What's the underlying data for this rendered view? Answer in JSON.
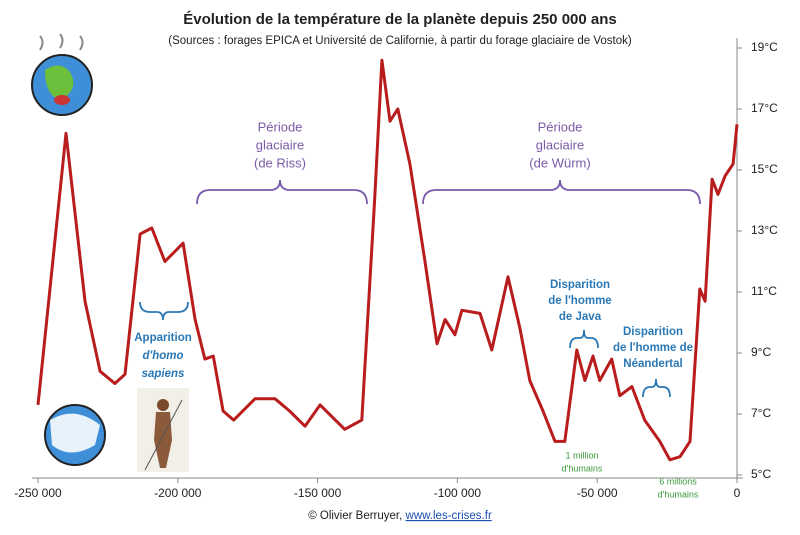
{
  "chart_data": {
    "type": "line",
    "title": "Évolution de la température de la planète depuis 250 000 ans",
    "subtitle": "(Sources : forages EPICA et Université de Californie, à partir du forage glaciaire de Vostok)",
    "x": [
      -250000,
      -240000,
      -233200,
      -227800,
      -222500,
      -218900,
      -213500,
      -209300,
      -204600,
      -198100,
      -193800,
      -190300,
      -187300,
      -183800,
      -180000,
      -172400,
      -165200,
      -160000,
      -154500,
      -149100,
      -140300,
      -134200,
      -129600,
      -127000,
      -124100,
      -121300,
      -117000,
      -111600,
      -107300,
      -104400,
      -100900,
      -98400,
      -91900,
      -87700,
      -81900,
      -77600,
      -74100,
      -69400,
      -65100,
      -61600,
      -57300,
      -54400,
      -51500,
      -49100,
      -44800,
      -41900,
      -37600,
      -33000,
      -27600,
      -24000,
      -20400,
      -16800,
      -13300,
      -11400,
      -8900,
      -6800,
      -4300,
      -1400,
      0
    ],
    "series": [
      {
        "color": "#b81c1c",
        "values": [
          7.3,
          16.2,
          10.7,
          8.4,
          8.0,
          8.3,
          12.9,
          13.1,
          12.0,
          12.6,
          10.1,
          8.8,
          8.9,
          7.1,
          6.8,
          7.5,
          7.5,
          7.1,
          6.6,
          7.3,
          6.5,
          6.8,
          14.0,
          18.6,
          16.6,
          17.0,
          15.2,
          12.0,
          9.3,
          10.1,
          9.6,
          10.4,
          10.3,
          9.1,
          11.5,
          9.8,
          8.1,
          7.1,
          6.1,
          6.1,
          9.1,
          8.1,
          8.9,
          8.1,
          8.8,
          7.6,
          7.9,
          6.8,
          6.1,
          5.5,
          5.6,
          6.1,
          11.1,
          10.7,
          14.7,
          14.2,
          14.8,
          15.2,
          16.5
        ]
      }
    ],
    "xlim": [
      -250000,
      0
    ],
    "xticks": [
      {
        "value": -250000,
        "label": "-250 000"
      },
      {
        "value": -200000,
        "label": "-200 000"
      },
      {
        "value": -150000,
        "label": "-150 000"
      },
      {
        "value": -100000,
        "label": "-100 000"
      },
      {
        "value": -50000,
        "label": "-50 000"
      },
      0
    ],
    "ylim": [
      5,
      19
    ],
    "yticks": [
      {
        "value": 5,
        "label": "5°C"
      },
      {
        "value": 7,
        "label": "7°C"
      },
      {
        "value": 9,
        "label": "9°C"
      },
      {
        "value": 11,
        "label": "11°C"
      },
      {
        "value": 13,
        "label": "13°C"
      },
      {
        "value": 15,
        "label": "15°C"
      },
      {
        "value": 17,
        "label": "17°C"
      },
      {
        "value": 19,
        "label": "19°C"
      }
    ],
    "grid": false,
    "annotations": [
      {
        "lines": [
          "Période",
          "glaciaire",
          "(de Riss)"
        ]
      },
      {
        "lines": [
          "Période",
          "glaciaire",
          "(de Würm)"
        ]
      },
      {
        "lines": [
          "Apparition",
          "d'homo",
          "sapiens"
        ]
      },
      {
        "lines": [
          "Disparition",
          "de l'homme",
          "de Java"
        ]
      },
      {
        "lines": [
          "Disparition",
          "de l'homme de",
          "Néandertal"
        ]
      },
      {
        "lines": [
          "1 million",
          "d'humains"
        ]
      },
      {
        "lines": [
          "6 millions",
          "d'humains"
        ]
      }
    ],
    "footer": {
      "text": "© Olivier Berruyer,",
      "link": "www.les-crises.fr"
    }
  }
}
